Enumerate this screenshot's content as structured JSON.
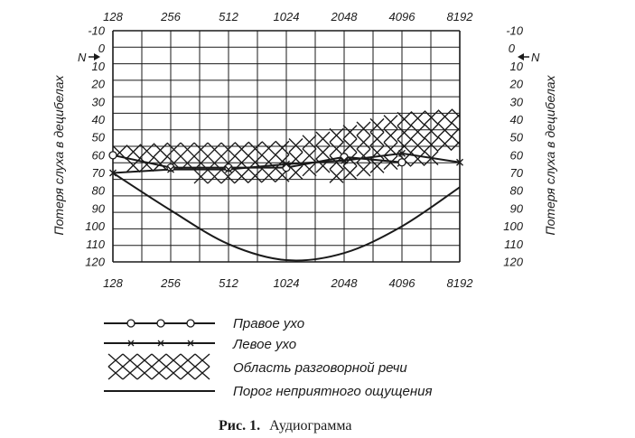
{
  "chart_data": {
    "type": "line",
    "x_axis": {
      "scale": "log2",
      "ticks": [
        "128",
        "256",
        "512",
        "1024",
        "2048",
        "4096",
        "8192"
      ],
      "values": [
        128,
        256,
        512,
        1024,
        2048,
        4096,
        8192
      ]
    },
    "y_axis": {
      "label": "Потеря слуха в децибелах",
      "ticks": [
        "-10",
        "0",
        "10",
        "20",
        "30",
        "40",
        "50",
        "60",
        "70",
        "80",
        "90",
        "100",
        "110",
        "120"
      ],
      "ylim": [
        -10,
        120
      ],
      "inverted": true,
      "zero_left_label": "N",
      "zero_right_label": "N"
    },
    "grid": true,
    "series": [
      {
        "name": "Правое ухо",
        "marker": "circle",
        "points": [
          [
            128,
            60
          ],
          [
            256,
            67
          ],
          [
            512,
            67
          ],
          [
            1024,
            67
          ],
          [
            2048,
            61
          ],
          [
            4096,
            64
          ]
        ]
      },
      {
        "name": "Левое ухо",
        "marker": "x",
        "points": [
          [
            128,
            70
          ],
          [
            256,
            68
          ],
          [
            512,
            68
          ],
          [
            1024,
            65
          ],
          [
            2048,
            63
          ],
          [
            4096,
            59
          ],
          [
            8192,
            64
          ]
        ]
      },
      {
        "name": "Порог неприятного ощущения",
        "marker": "none",
        "points": [
          [
            128,
            70
          ],
          [
            256,
            91
          ],
          [
            512,
            110
          ],
          [
            1024,
            119
          ],
          [
            2048,
            115
          ],
          [
            4096,
            100
          ],
          [
            8192,
            78
          ]
        ]
      }
    ],
    "speech_area": {
      "name": "Область разговорной речи",
      "upper": [
        [
          128,
          55
        ],
        [
          256,
          53
        ],
        [
          512,
          53
        ],
        [
          1024,
          52
        ],
        [
          2048,
          44
        ],
        [
          4096,
          36
        ],
        [
          8192,
          34
        ]
      ],
      "lower": [
        [
          128,
          67
        ],
        [
          256,
          73
        ],
        [
          512,
          77
        ],
        [
          1024,
          78
        ],
        [
          2048,
          74
        ],
        [
          4096,
          70
        ],
        [
          8192,
          60
        ]
      ]
    },
    "legend": {
      "placement": "bottom",
      "items": [
        {
          "label": "Правое ухо",
          "symbol": "circle-line"
        },
        {
          "label": "Левое ухо",
          "symbol": "x-line"
        },
        {
          "label": "Область разговорной речи",
          "symbol": "crosshatch"
        },
        {
          "label": "Порог неприятного ощущения",
          "symbol": "line"
        }
      ]
    }
  },
  "caption": {
    "number": "Рис. 1.",
    "text": "Аудиограмма"
  },
  "colors": {
    "ink": "#1a1a1a",
    "paper": "#ffffff"
  }
}
